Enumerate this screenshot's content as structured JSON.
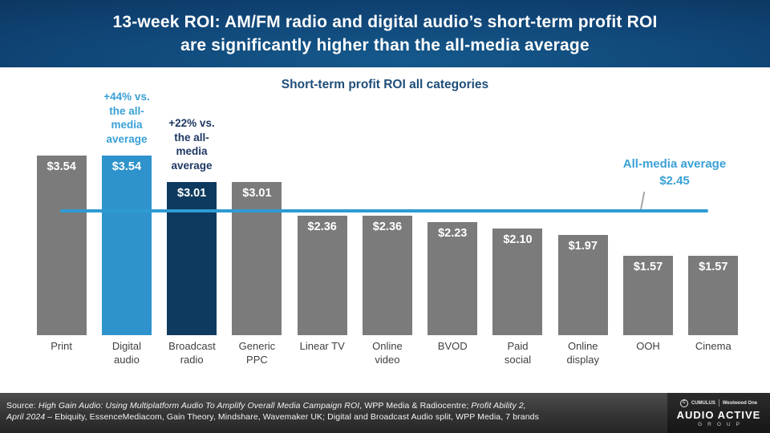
{
  "header": {
    "title_line1": "13-week ROI: AM/FM radio and digital audio’s short-term profit ROI",
    "title_line2": "are significantly higher than the all-media average"
  },
  "chart_data": {
    "type": "bar",
    "title": "Short-term profit ROI all categories",
    "categories": [
      "Print",
      "Digital audio",
      "Broadcast radio",
      "Generic PPC",
      "Linear TV",
      "Online video",
      "BVOD",
      "Paid social",
      "Online display",
      "OOH",
      "Cinema"
    ],
    "values": [
      3.54,
      3.54,
      3.01,
      3.01,
      2.36,
      2.36,
      2.23,
      2.1,
      1.97,
      1.57,
      1.57
    ],
    "value_labels": [
      "$3.54",
      "$3.54",
      "$3.01",
      "$3.01",
      "$2.36",
      "$2.36",
      "$2.23",
      "$2.10",
      "$1.97",
      "$1.57",
      "$1.57"
    ],
    "bar_colors": [
      "gray",
      "light_blue",
      "dark_navy",
      "gray",
      "gray",
      "gray",
      "gray",
      "gray",
      "gray",
      "gray",
      "gray"
    ],
    "ylabel": "",
    "xlabel": "",
    "ylim": [
      0,
      4.87
    ],
    "grid": false,
    "legend": false,
    "average_line": {
      "value": 2.45,
      "label": "All-media average\n$2.45"
    },
    "annotations": [
      {
        "target": "Digital audio",
        "text": "+44% vs.\nthe all-\nmedia\naverage"
      },
      {
        "target": "Broadcast radio",
        "text": "+22% vs.\nthe all-\nmedia\naverage"
      }
    ]
  },
  "colors": {
    "gray": "#7B7B7B",
    "light_blue": "#2E93CC",
    "dark_navy": "#0F3A5F",
    "accent_line": "#2E9BD3",
    "annotation_light": "#3AA0D6",
    "annotation_dark": "#1F3864",
    "chart_title": "#1F4E79"
  },
  "footer": {
    "source": {
      "prefix": "Source: ",
      "italic1": "High Gain Audio: Using Multiplatform Audio To Amplify Overall Media Campaign ROI",
      "normal1": ", WPP Media & Radiocentre; ",
      "italic2": "Profit Ability 2,",
      "italic3": "April 2024",
      "normal2": " – Ebiquity, EssenceMediacom, Gain Theory, Mindshare, Wavemaker UK; Digital and Broadcast Audio split, WPP Media, 7 brands"
    },
    "logo": {
      "cumulus": "CUMULUS",
      "westwood": "Westwood One",
      "main": "AUDIO ACTIVE",
      "sub": "GROUP"
    }
  }
}
